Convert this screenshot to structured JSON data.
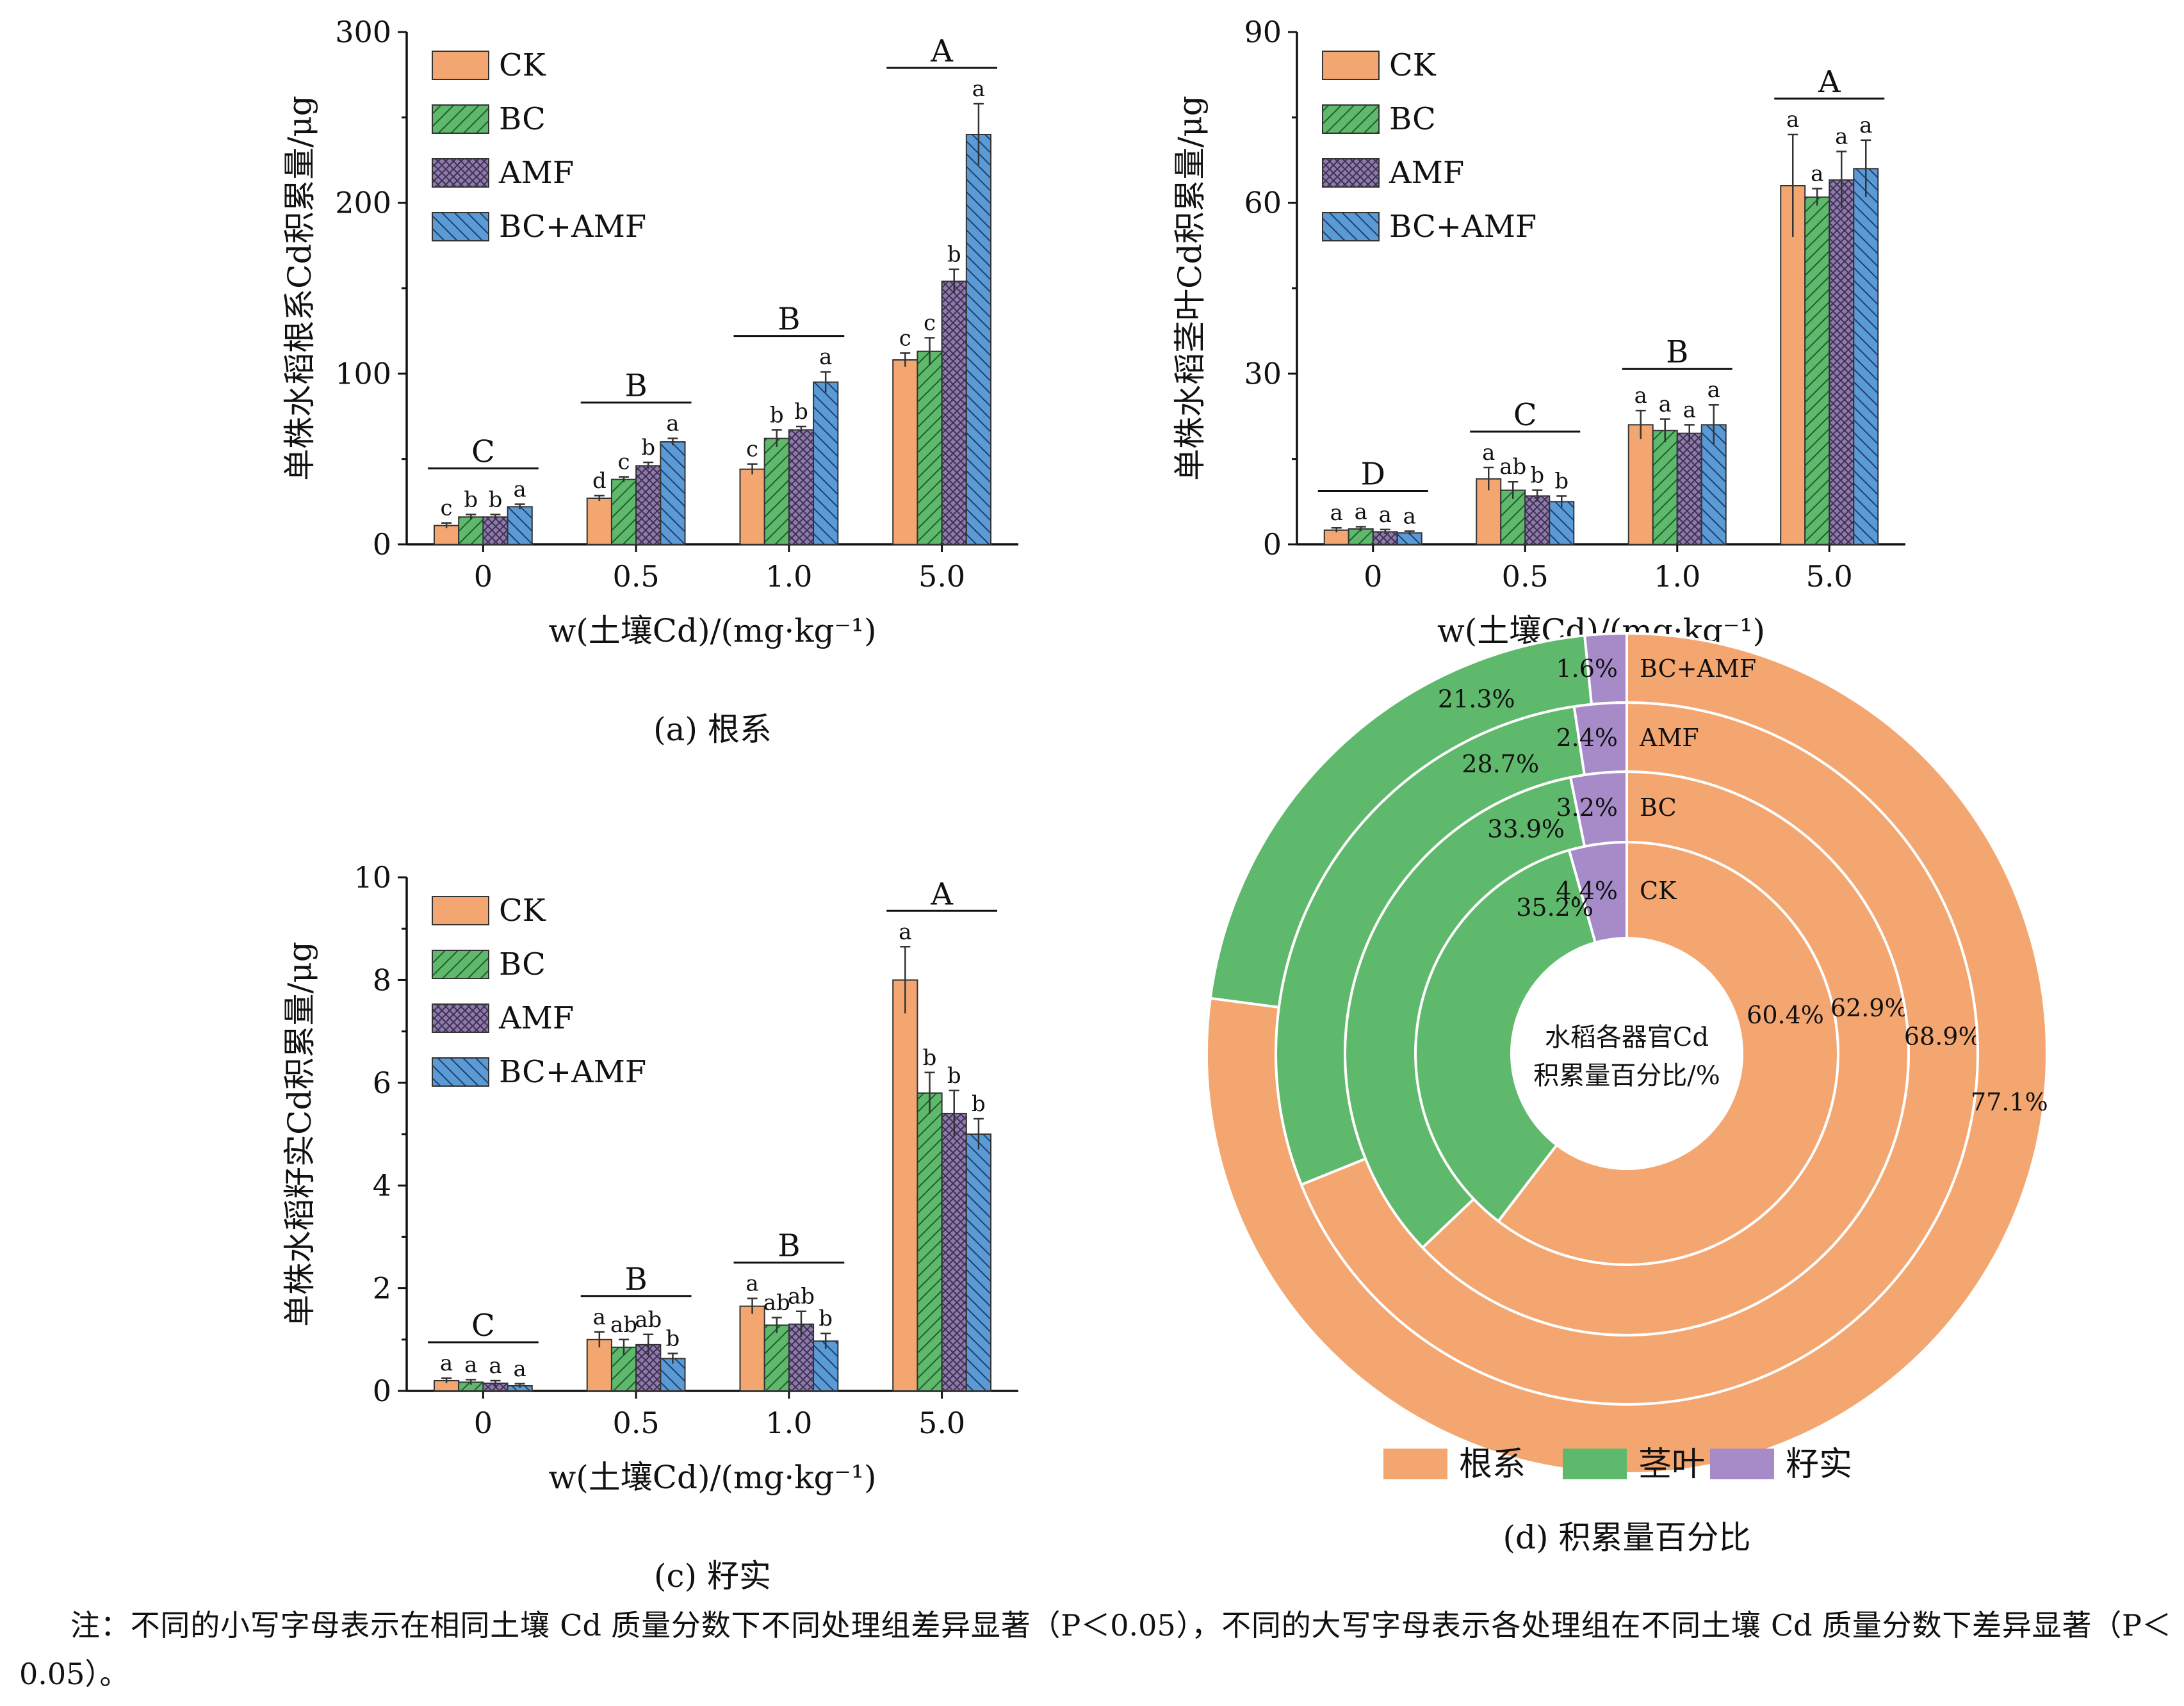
{
  "colors": {
    "CK": "#f4a671",
    "BC": "#5fb96c",
    "AMF": "#8e7aa8",
    "BC+AMF": "#5b9bd5",
    "root": "#f4a671",
    "stem": "#5fb96c",
    "grain": "#a78bc9"
  },
  "legend_labels": [
    "CK",
    "BC",
    "AMF",
    "BC+AMF"
  ],
  "chart_data": [
    {
      "id": "a",
      "type": "bar",
      "caption": "(a) 根系",
      "ylabel": "单株水稻根系Cd积累量/μg",
      "xlabel": "w(土壤Cd)/(mg·kg⁻¹)",
      "categories": [
        "0",
        "0.5",
        "1.0",
        "5.0"
      ],
      "ylim": [
        0,
        300
      ],
      "yticks": [
        "0",
        "100",
        "200",
        "300"
      ],
      "series": [
        {
          "name": "CK",
          "values": [
            11,
            27,
            44,
            108
          ],
          "errors": [
            1.5,
            1.5,
            3,
            4
          ],
          "letters": [
            "c",
            "d",
            "c",
            "c"
          ]
        },
        {
          "name": "BC",
          "values": [
            16,
            38,
            62,
            113
          ],
          "errors": [
            1.5,
            1.5,
            5,
            8
          ],
          "letters": [
            "b",
            "c",
            "b",
            "c"
          ]
        },
        {
          "name": "AMF",
          "values": [
            16,
            46,
            67,
            154
          ],
          "errors": [
            1.5,
            2,
            2,
            7
          ],
          "letters": [
            "b",
            "b",
            "b",
            "b"
          ]
        },
        {
          "name": "BC+AMF",
          "values": [
            22,
            60,
            95,
            240
          ],
          "errors": [
            1.5,
            2,
            6,
            18
          ],
          "letters": [
            "a",
            "a",
            "a",
            "a"
          ]
        }
      ],
      "group_letters": [
        "C",
        "B",
        "B",
        "A"
      ]
    },
    {
      "id": "b",
      "type": "bar",
      "caption": "(b) 茎叶",
      "ylabel": "单株水稻茎叶Cd积累量/μg",
      "xlabel": "w(土壤Cd)/(mg·kg⁻¹)",
      "categories": [
        "0",
        "0.5",
        "1.0",
        "5.0"
      ],
      "ylim": [
        0,
        90
      ],
      "yticks": [
        "0",
        "30",
        "60",
        "90"
      ],
      "series": [
        {
          "name": "CK",
          "values": [
            2.5,
            11.5,
            21,
            63
          ],
          "errors": [
            0.4,
            2,
            2.5,
            9
          ],
          "letters": [
            "a",
            "a",
            "a",
            "a"
          ]
        },
        {
          "name": "BC",
          "values": [
            2.7,
            9.5,
            20,
            61
          ],
          "errors": [
            0.4,
            1.5,
            2,
            1.5
          ],
          "letters": [
            "a",
            "ab",
            "a",
            "a"
          ]
        },
        {
          "name": "AMF",
          "values": [
            2.2,
            8.5,
            19.5,
            64
          ],
          "errors": [
            0.4,
            1,
            1.5,
            5
          ],
          "letters": [
            "a",
            "b",
            "a",
            "a"
          ]
        },
        {
          "name": "BC+AMF",
          "values": [
            2.0,
            7.5,
            21,
            66
          ],
          "errors": [
            0.3,
            1,
            3.5,
            5
          ],
          "letters": [
            "a",
            "b",
            "a",
            "a"
          ]
        }
      ],
      "group_letters": [
        "D",
        "C",
        "B",
        "A"
      ]
    },
    {
      "id": "c",
      "type": "bar",
      "caption": "(c) 籽实",
      "ylabel": "单株水稻籽实Cd积累量/μg",
      "xlabel": "w(土壤Cd)/(mg·kg⁻¹)",
      "categories": [
        "0",
        "0.5",
        "1.0",
        "5.0"
      ],
      "ylim": [
        0,
        10
      ],
      "yticks": [
        "0",
        "2",
        "4",
        "6",
        "8",
        "10"
      ],
      "series": [
        {
          "name": "CK",
          "values": [
            0.2,
            1.0,
            1.65,
            8.0
          ],
          "errors": [
            0.05,
            0.15,
            0.15,
            0.65
          ],
          "letters": [
            "a",
            "a",
            "a",
            "a"
          ]
        },
        {
          "name": "BC",
          "values": [
            0.17,
            0.85,
            1.28,
            5.8
          ],
          "errors": [
            0.05,
            0.15,
            0.15,
            0.4
          ],
          "letters": [
            "a",
            "ab",
            "ab",
            "b"
          ]
        },
        {
          "name": "AMF",
          "values": [
            0.15,
            0.9,
            1.3,
            5.4
          ],
          "errors": [
            0.05,
            0.2,
            0.25,
            0.45
          ],
          "letters": [
            "a",
            "ab",
            "ab",
            "b"
          ]
        },
        {
          "name": "BC+AMF",
          "values": [
            0.1,
            0.63,
            0.97,
            5.0
          ],
          "errors": [
            0.04,
            0.1,
            0.15,
            0.3
          ],
          "letters": [
            "a",
            "b",
            "b",
            "b"
          ]
        }
      ],
      "group_letters": [
        "C",
        "B",
        "B",
        "A"
      ]
    },
    {
      "id": "d",
      "type": "pie",
      "caption": "(d) 积累量百分比",
      "center_label": [
        "水稻各器官Cd",
        "积累量百分比/%"
      ],
      "legend": [
        "根系",
        "茎叶",
        "籽实"
      ],
      "rings": [
        {
          "name": "CK",
          "values": [
            60.4,
            35.2,
            4.4
          ],
          "labels": [
            "60.4%",
            "35.2%",
            "4.4%"
          ]
        },
        {
          "name": "BC",
          "values": [
            62.9,
            33.9,
            3.2
          ],
          "labels": [
            "62.9%",
            "33.9%",
            "3.2%"
          ]
        },
        {
          "name": "AMF",
          "values": [
            68.9,
            28.7,
            2.4
          ],
          "labels": [
            "68.9%",
            "28.7%",
            "2.4%"
          ]
        },
        {
          "name": "BC+AMF",
          "values": [
            77.1,
            21.3,
            1.6
          ],
          "labels": [
            "77.1%",
            "21.3%",
            "1.6%"
          ]
        }
      ]
    }
  ],
  "note": {
    "line1": "注：不同的小写字母表示在相同土壤 Cd 质量分数下不同处理组差异显著（P＜0.05），不同的大写字母表示各处理组在不同土壤 Cd 质量",
    "line2": "分数下差异显著（P＜0.05）。"
  }
}
